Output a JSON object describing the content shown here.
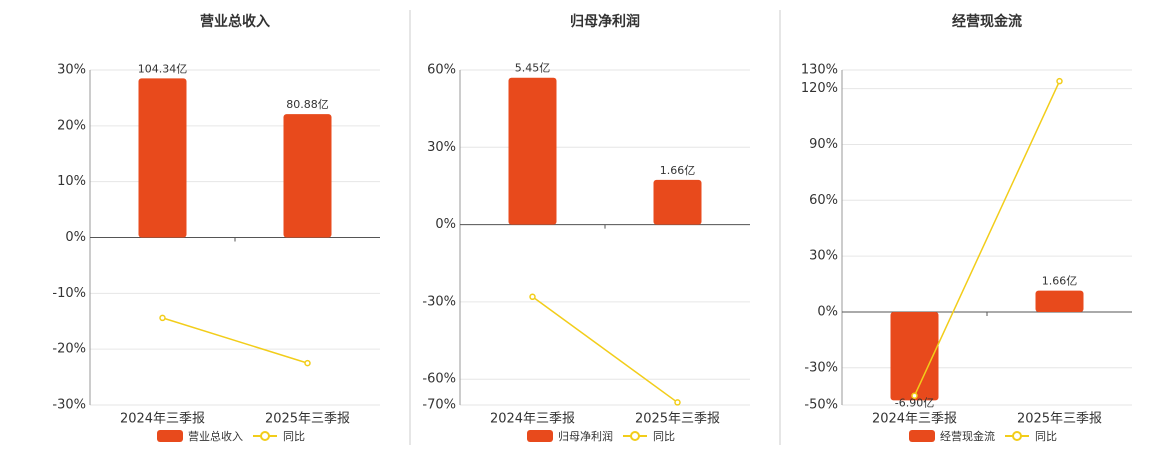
{
  "chart_data": [
    {
      "type": "combo",
      "title": "营业总收入",
      "categories": [
        "2024年三季报",
        "2025年三季报"
      ],
      "series": [
        {
          "name": "营业总收入",
          "color": "#e84a1c",
          "values": [
            104.34,
            80.88
          ],
          "value_labels": [
            "104.34亿",
            "80.88亿"
          ]
        },
        {
          "name": "同比",
          "color": "#f2cd1a",
          "values": [
            -14.4,
            -22.5
          ]
        }
      ],
      "ylim": [
        -30,
        30
      ],
      "yticks": [
        {
          "value": -30,
          "label": "-30%"
        },
        {
          "value": -20,
          "label": "-20%"
        },
        {
          "value": -10,
          "label": "-10%"
        },
        {
          "value": 0,
          "label": "0%"
        },
        {
          "value": 10,
          "label": "10%"
        },
        {
          "value": 20,
          "label": "20%"
        },
        {
          "value": 30,
          "label": "30%"
        }
      ],
      "grid": true
    },
    {
      "type": "combo",
      "title": "归母净利润",
      "categories": [
        "2024年三季报",
        "2025年三季报"
      ],
      "series": [
        {
          "name": "归母净利润",
          "color": "#e84a1c",
          "values": [
            5.45,
            1.66
          ],
          "value_labels": [
            "5.45亿",
            "1.66亿"
          ]
        },
        {
          "name": "同比",
          "color": "#f2cd1a",
          "values": [
            -28,
            -69
          ]
        }
      ],
      "ylim": [
        -70,
        60
      ],
      "yticks": [
        {
          "value": -70,
          "label": "-70%"
        },
        {
          "value": -60,
          "label": "-60%"
        },
        {
          "value": -30,
          "label": "-30%"
        },
        {
          "value": 0,
          "label": "0%"
        },
        {
          "value": 30,
          "label": "30%"
        },
        {
          "value": 60,
          "label": "60%"
        }
      ],
      "grid": true
    },
    {
      "type": "combo",
      "title": "经营现金流",
      "categories": [
        "2024年三季报",
        "2025年三季报"
      ],
      "series": [
        {
          "name": "经营现金流",
          "color": "#e84a1c",
          "values": [
            -6.9,
            1.66
          ],
          "value_labels": [
            "-6.90亿",
            "1.66亿"
          ]
        },
        {
          "name": "同比",
          "color": "#f2cd1a",
          "values": [
            -45,
            124
          ]
        }
      ],
      "ylim": [
        -50,
        130
      ],
      "yticks": [
        {
          "value": -50,
          "label": "-50%"
        },
        {
          "value": -30,
          "label": "-30%"
        },
        {
          "value": 0,
          "label": "0%"
        },
        {
          "value": 30,
          "label": "30%"
        },
        {
          "value": 60,
          "label": "60%"
        },
        {
          "value": 90,
          "label": "90%"
        },
        {
          "value": 120,
          "label": "120%"
        },
        {
          "value": 130,
          "label": "130%"
        }
      ],
      "grid": true
    }
  ]
}
